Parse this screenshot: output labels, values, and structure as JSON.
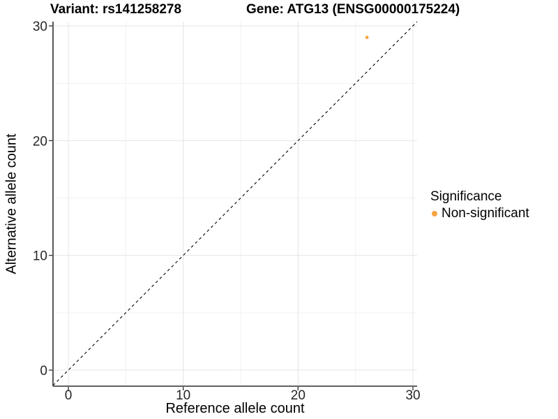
{
  "figure": {
    "title_left": "Variant: rs141258278",
    "title_right": "Gene: ATG13 (ENSG00000175224)"
  },
  "chart_data": {
    "type": "scatter",
    "title_left": "Variant: rs141258278",
    "title_right": "Gene: ATG13 (ENSG00000175224)",
    "xlabel": "Reference allele count",
    "ylabel": "Alternative allele count",
    "xlim": [
      -1.35,
      30.35
    ],
    "ylim": [
      -1.4,
      30.4
    ],
    "x_ticks": [
      0,
      10,
      20,
      30
    ],
    "y_ticks": [
      0,
      10,
      20,
      30
    ],
    "x_minor_ticks": [
      5,
      15,
      25
    ],
    "y_minor_ticks": [
      5,
      15,
      25
    ],
    "grid": "major+minor, light gray on white",
    "identity_line": {
      "equation": "y = x",
      "style": "dashed",
      "color": "#000000"
    },
    "series": [
      {
        "name": "Non-significant",
        "color": "#F8A343",
        "points": [
          {
            "x": 26,
            "y": 29
          }
        ]
      }
    ],
    "legend": {
      "title": "Significance",
      "position": "right",
      "items": [
        {
          "label": "Non-significant",
          "color": "#F8A343"
        }
      ]
    },
    "colors": {
      "grid_major": "#E4E4E4",
      "grid_minor": "#F1F1F1",
      "axis_line": "#2F2F2F",
      "tick_text": "#262626",
      "point": "#F8A343"
    }
  }
}
